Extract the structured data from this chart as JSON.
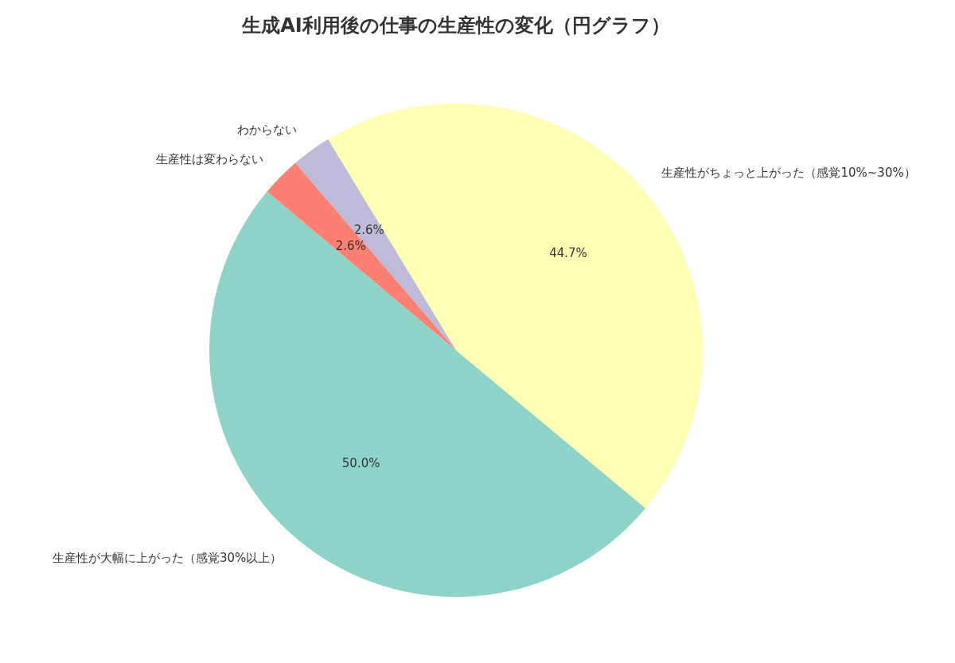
{
  "chart_data": {
    "type": "pie",
    "title": "生成AI利用後の仕事の生産性の変化（円グラフ）",
    "categories": [
      "生産性が大幅に上がった（感覚30%以上）",
      "生産性がちょっと上がった（感覚10%~30%）",
      "わからない",
      "生産性は変わらない"
    ],
    "values": [
      50.0,
      44.7,
      2.6,
      2.6
    ],
    "value_labels": [
      "50.0%",
      "44.7%",
      "2.6%",
      "2.6%"
    ],
    "colors": [
      "#8dd3c7",
      "#ffffb3",
      "#bebada",
      "#fb8072"
    ]
  }
}
